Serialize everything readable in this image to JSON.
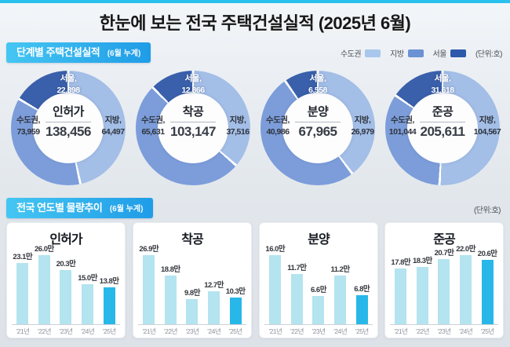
{
  "page": {
    "title": "한눈에 보는 전국 주택건설실적 (2025년 6월)"
  },
  "colors": {
    "topbar": "#2bc1ef",
    "banner_gradient_start": "#45c6f2",
    "banner_gradient_end": "#1f9ce7",
    "donut_light": "#a3bee7",
    "donut_medium": "#7c9dda",
    "donut_dark": "#3a60ab",
    "bar": "#b3e4ef",
    "bar_highlight": "#28b7e9"
  },
  "section1": {
    "heading": "단계별 주택건설실적",
    "heading_note": "(6월 누계)",
    "unit": "(단위:호)",
    "legend": [
      {
        "label": "수도권",
        "color": "#a9c7ec"
      },
      {
        "label": "지방",
        "color": "#6b92d4"
      },
      {
        "label": "서울",
        "color": "#2d59ac"
      }
    ]
  },
  "section2": {
    "heading": "전국 연도별 물량추이",
    "heading_note": "(6월 누계)",
    "unit": "(단위:호)"
  },
  "chart_data": [
    {
      "type": "donut",
      "title": "인허가",
      "total": 138456,
      "total_label": "138,456",
      "slices": [
        {
          "name": "지방",
          "label": "지방,",
          "value": 64497,
          "value_label": "64,497",
          "color": "#a3bee7",
          "position": "right"
        },
        {
          "name": "수도권",
          "label": "수도권,",
          "value": 73959,
          "value_label": "73,959",
          "color": "#7c9dda",
          "position": "left",
          "includes_seoul": true
        },
        {
          "name": "서울",
          "label": "서울,",
          "value": 22898,
          "value_label": "22,898",
          "color": "#3a60ab",
          "position": "top"
        }
      ]
    },
    {
      "type": "donut",
      "title": "착공",
      "total": 103147,
      "total_label": "103,147",
      "slices": [
        {
          "name": "지방",
          "label": "지방,",
          "value": 37516,
          "value_label": "37,516",
          "color": "#a3bee7",
          "position": "right"
        },
        {
          "name": "수도권",
          "label": "수도권,",
          "value": 65631,
          "value_label": "65,631",
          "color": "#7c9dda",
          "position": "left",
          "includes_seoul": true
        },
        {
          "name": "서울",
          "label": "서울,",
          "value": 12866,
          "value_label": "12,866",
          "color": "#3a60ab",
          "position": "top"
        }
      ]
    },
    {
      "type": "donut",
      "title": "분양",
      "total": 67965,
      "total_label": "67,965",
      "slices": [
        {
          "name": "지방",
          "label": "지방,",
          "value": 26979,
          "value_label": "26,979",
          "color": "#a3bee7",
          "position": "right"
        },
        {
          "name": "수도권",
          "label": "수도권,",
          "value": 40986,
          "value_label": "40,986",
          "color": "#7c9dda",
          "position": "left",
          "includes_seoul": true
        },
        {
          "name": "서울",
          "label": "서울,",
          "value": 6558,
          "value_label": "6,558",
          "color": "#3a60ab",
          "position": "top"
        }
      ]
    },
    {
      "type": "donut",
      "title": "준공",
      "total": 205611,
      "total_label": "205,611",
      "slices": [
        {
          "name": "지방",
          "label": "지방,",
          "value": 104567,
          "value_label": "104,567",
          "color": "#a3bee7",
          "position": "right"
        },
        {
          "name": "수도권",
          "label": "수도권,",
          "value": 101044,
          "value_label": "101,044",
          "color": "#7c9dda",
          "position": "left",
          "includes_seoul": true
        },
        {
          "name": "서울",
          "label": "서울,",
          "value": 31618,
          "value_label": "31,618",
          "color": "#3a60ab",
          "position": "top"
        }
      ]
    },
    {
      "type": "bar",
      "title": "인허가",
      "categories": [
        "’21년",
        "’22년",
        "’23년",
        "’24년",
        "’25년"
      ],
      "values": [
        23.1,
        26.0,
        20.3,
        15.0,
        13.8
      ],
      "value_labels": [
        "23.1만",
        "26.0만",
        "20.3만",
        "15.0만",
        "13.8만"
      ],
      "unit": "만",
      "highlight_index": 4,
      "bar_color": "#b3e4ef",
      "highlight_color": "#28b7e9"
    },
    {
      "type": "bar",
      "title": "착공",
      "categories": [
        "’21년",
        "’22년",
        "’23년",
        "’24년",
        "’25년"
      ],
      "values": [
        26.9,
        18.8,
        9.8,
        12.7,
        10.3
      ],
      "value_labels": [
        "26.9만",
        "18.8만",
        "9.8만",
        "12.7만",
        "10.3만"
      ],
      "unit": "만",
      "highlight_index": 4,
      "bar_color": "#b3e4ef",
      "highlight_color": "#28b7e9"
    },
    {
      "type": "bar",
      "title": "분양",
      "categories": [
        "’21년",
        "’22년",
        "’23년",
        "’24년",
        "’25년"
      ],
      "values": [
        16.0,
        11.7,
        6.6,
        11.2,
        6.8
      ],
      "value_labels": [
        "16.0만",
        "11.7만",
        "6.6만",
        "11.2만",
        "6.8만"
      ],
      "unit": "만",
      "highlight_index": 4,
      "bar_color": "#b3e4ef",
      "highlight_color": "#28b7e9"
    },
    {
      "type": "bar",
      "title": "준공",
      "categories": [
        "’21년",
        "’22년",
        "’23년",
        "’24년",
        "’25년"
      ],
      "values": [
        17.8,
        18.3,
        20.7,
        22.0,
        20.6
      ],
      "value_labels": [
        "17.8만",
        "18.3만",
        "20.7만",
        "22.0만",
        "20.6만"
      ],
      "unit": "만",
      "highlight_index": 4,
      "bar_color": "#b3e4ef",
      "highlight_color": "#28b7e9"
    }
  ]
}
